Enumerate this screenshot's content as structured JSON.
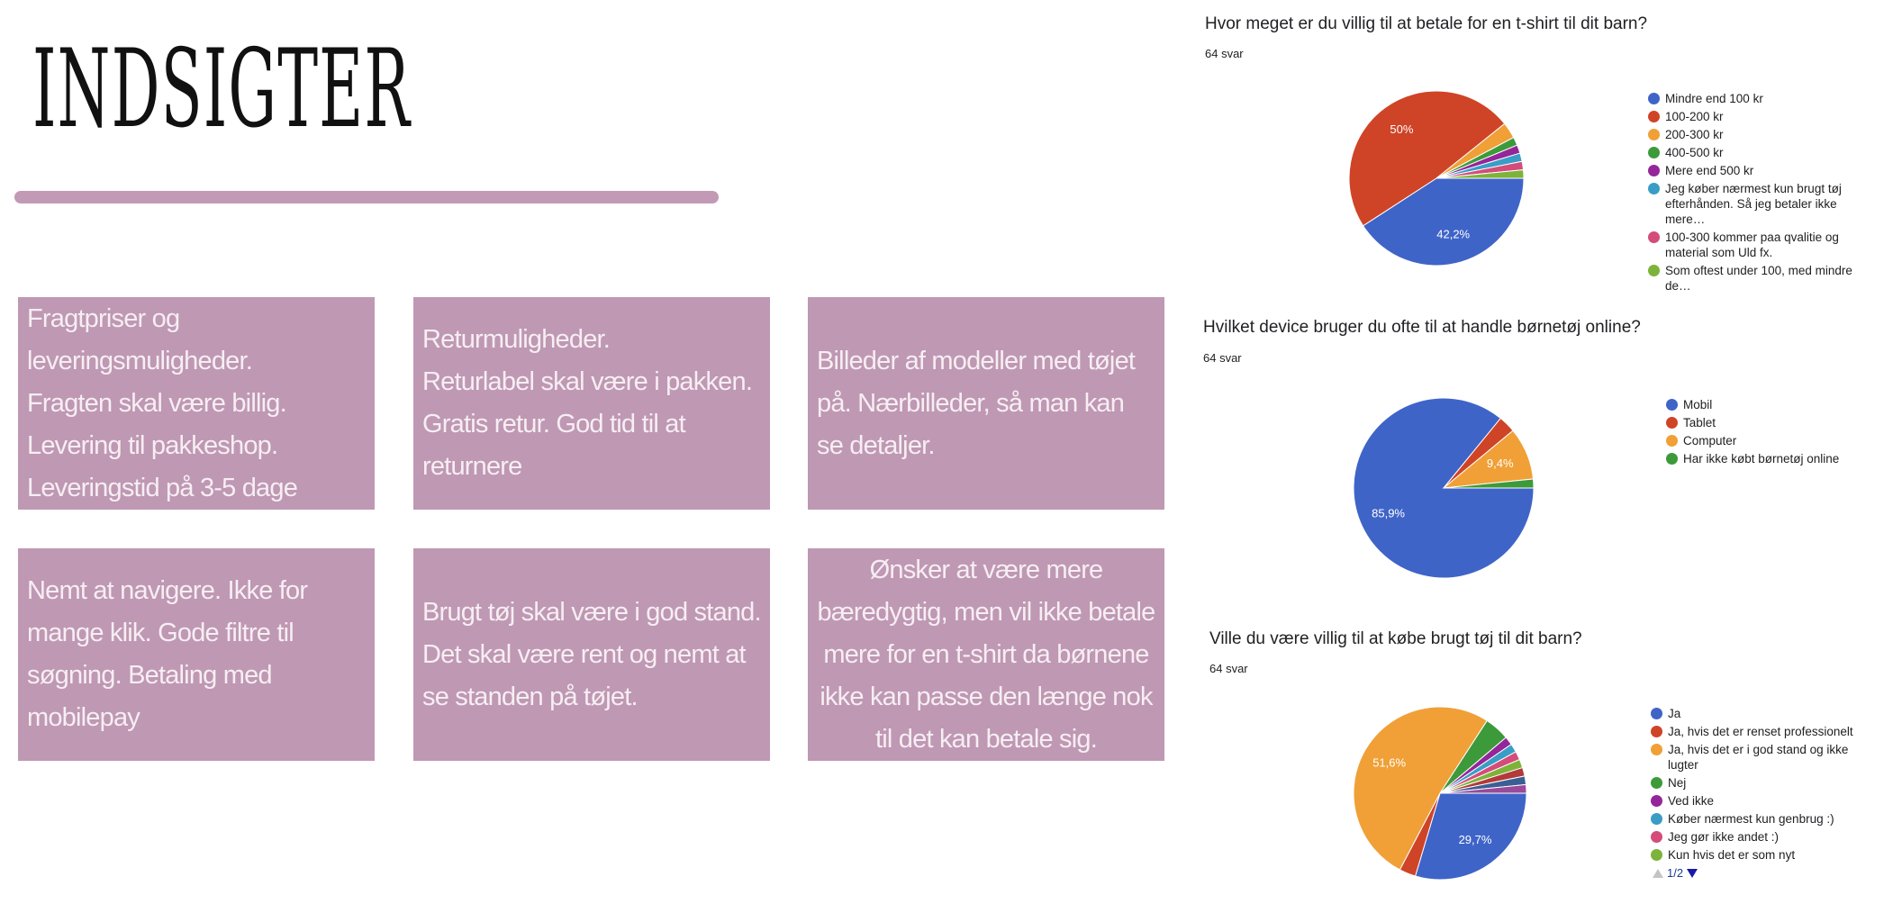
{
  "title": "INDSIGTER",
  "cards": [
    "Fragtpriser og leveringsmuligheder.\nFragten skal være billig. Levering til pakkeshop. Leveringstid på 3-5 dage",
    "Returmuligheder.\nReturlabel skal være i pakken. Gratis retur. God tid til at returnere",
    "Billeder af modeller med tøjet på. Nærbilleder, så man kan se detaljer.",
    "Nemt at navigere. Ikke for mange klik.  Gode filtre til søgning. Betaling med mobilepay",
    "Brugt tøj skal være i god stand. Det skal være rent og nemt at se standen på tøjet.",
    "Ønsker at være mere bæredygtig, men vil ikke betale mere for en t-shirt da børnene ikke kan passe den længe nok til det kan betale sig."
  ],
  "chart_data": [
    {
      "type": "pie",
      "title": "Hvor meget er du villig til at betale for en t-shirt til dit barn?",
      "subtitle": "64 svar",
      "categories": [
        "Mindre end 100 kr",
        "100-200 kr",
        "200-300 kr",
        "400-500 kr",
        "Mere end 500 kr",
        "Jeg køber nærmest kun brugt tøj efterhånden. Så jeg betaler ikke mere…",
        "100-300 kommer paa qvalitie og material som Uld fx.",
        "Som oftest under 100, med mindre de…"
      ],
      "values": [
        42.2,
        50,
        3.1,
        1.6,
        1.6,
        1.6,
        1.6,
        1.6
      ],
      "value_labels": [
        "42,2%",
        "50%",
        null,
        null,
        null,
        null,
        null,
        null
      ],
      "colors": [
        "#3f64c8",
        "#cf4426",
        "#f0a037",
        "#3d9a3a",
        "#94269a",
        "#3a9dc5",
        "#d44c7a",
        "#7db33a"
      ]
    },
    {
      "type": "pie",
      "title": "Hvilket device bruger du ofte til at handle børnetøj online?",
      "subtitle": "64 svar",
      "categories": [
        "Mobil",
        "Tablet",
        "Computer",
        "Har ikke købt børnetøj online"
      ],
      "values": [
        85.9,
        3.1,
        9.4,
        1.6
      ],
      "value_labels": [
        "85,9%",
        null,
        "9,4%",
        null
      ],
      "colors": [
        "#3f64c8",
        "#cf4426",
        "#f0a037",
        "#3d9a3a"
      ]
    },
    {
      "type": "pie",
      "title": "Ville du være villig til at købe brugt tøj til dit barn?",
      "subtitle": "64 svar",
      "categories": [
        "Ja",
        "Ja, hvis det er renset professionelt",
        "Ja, hvis det er i god stand og ikke lugter",
        "Nej",
        "Ved ikke",
        "Køber nærmest kun genbrug :)",
        "Jeg gør ikke andet :)",
        "Kun hvis det er som nyt",
        null,
        null,
        null
      ],
      "values": [
        29.7,
        3.1,
        51.6,
        4.7,
        1.6,
        1.6,
        1.6,
        1.6,
        1.6,
        1.6,
        1.6
      ],
      "value_labels": [
        "29,7%",
        null,
        "51,6%",
        null,
        null,
        null,
        null,
        null,
        null,
        null,
        null
      ],
      "colors": [
        "#3f64c8",
        "#cf4426",
        "#f0a037",
        "#3d9a3a",
        "#94269a",
        "#3a9dc5",
        "#d44c7a",
        "#7db33a",
        "#b33a3a",
        "#3a5f95",
        "#9a4a9a"
      ],
      "page_label": "1/2"
    }
  ]
}
